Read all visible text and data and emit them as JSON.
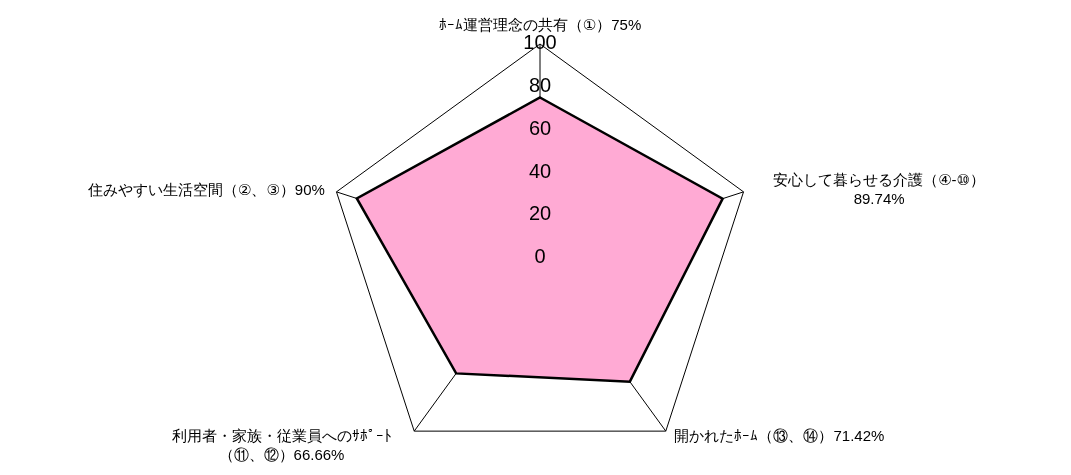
{
  "chart_data": {
    "type": "radar",
    "categories": [
      "ﾎｰﾑ運営理念の共有（①）75%",
      "安心して暮らせる介護（④-⑩）89.74%",
      "開かれたﾎｰﾑ（⑬、⑭）71.42%",
      "利用者・家族・従業員へのｻﾎﾟｰﾄ（⑪、⑫）66.66%",
      "住みやすい生活空間（②、③）90%"
    ],
    "series": [
      {
        "color": "#ffaad4",
        "values": [
          75,
          89.74,
          71.42,
          66.66,
          90
        ]
      }
    ],
    "ylim": [
      0,
      100
    ],
    "yticks": [
      0,
      20,
      40,
      60,
      80,
      100
    ],
    "grid": true,
    "legend": false
  }
}
